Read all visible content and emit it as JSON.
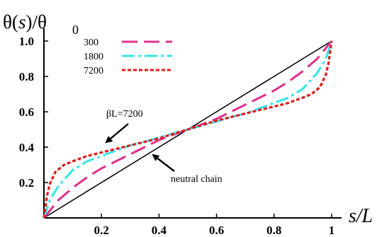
{
  "chart_data": {
    "type": "line",
    "title": "",
    "ylabel": "θ(s)/θ 0",
    "xlabel": "s/L",
    "xlim": [
      0,
      1
    ],
    "ylim": [
      0,
      1
    ],
    "x_ticks": [
      "0.2",
      "0.4",
      "0.6",
      "0.8",
      "1"
    ],
    "y_ticks": [
      "0.2",
      "0.4",
      "0.6",
      "0.8",
      "1.0"
    ],
    "legend": {
      "placement": "top-left",
      "entries": [
        {
          "label": "300",
          "color": "#e0308a",
          "dash": "long-dash"
        },
        {
          "label": "1800",
          "color": "#33e6ea",
          "dash": "dash-dot"
        },
        {
          "label": "7200",
          "color": "#e01a1a",
          "dash": "short-dash"
        }
      ]
    },
    "series": [
      {
        "name": "neutral chain",
        "color": "#000000",
        "x": [
          0,
          0.1,
          0.2,
          0.3,
          0.4,
          0.5,
          0.6,
          0.7,
          0.8,
          0.9,
          1.0
        ],
        "y": [
          0,
          0.1,
          0.2,
          0.3,
          0.4,
          0.5,
          0.6,
          0.7,
          0.8,
          0.9,
          1.0
        ]
      },
      {
        "name": "300",
        "color": "#e0308a",
        "x": [
          0,
          0.05,
          0.1,
          0.15,
          0.2,
          0.25,
          0.3,
          0.35,
          0.4,
          0.45,
          0.5,
          0.55,
          0.6,
          0.65,
          0.7,
          0.75,
          0.8,
          0.85,
          0.9,
          0.95,
          1.0
        ],
        "y": [
          0,
          0.1,
          0.17,
          0.23,
          0.28,
          0.32,
          0.36,
          0.4,
          0.44,
          0.47,
          0.5,
          0.53,
          0.56,
          0.6,
          0.64,
          0.68,
          0.72,
          0.77,
          0.83,
          0.9,
          1.0
        ]
      },
      {
        "name": "1800",
        "color": "#33e6ea",
        "x": [
          0,
          0.02,
          0.05,
          0.1,
          0.15,
          0.2,
          0.25,
          0.3,
          0.35,
          0.4,
          0.45,
          0.5,
          0.55,
          0.6,
          0.65,
          0.7,
          0.75,
          0.8,
          0.85,
          0.9,
          0.95,
          0.98,
          1.0
        ],
        "y": [
          0,
          0.1,
          0.18,
          0.27,
          0.32,
          0.35,
          0.38,
          0.41,
          0.43,
          0.455,
          0.478,
          0.5,
          0.522,
          0.545,
          0.57,
          0.59,
          0.62,
          0.65,
          0.68,
          0.73,
          0.82,
          0.9,
          1.0
        ]
      },
      {
        "name": "7200",
        "color": "#e01a1a",
        "x": [
          0,
          0.01,
          0.02,
          0.04,
          0.07,
          0.1,
          0.15,
          0.2,
          0.3,
          0.4,
          0.5,
          0.6,
          0.7,
          0.8,
          0.85,
          0.9,
          0.93,
          0.96,
          0.98,
          0.99,
          1.0
        ],
        "y": [
          0,
          0.12,
          0.19,
          0.26,
          0.3,
          0.32,
          0.35,
          0.37,
          0.41,
          0.45,
          0.5,
          0.55,
          0.59,
          0.63,
          0.65,
          0.68,
          0.7,
          0.74,
          0.81,
          0.88,
          1.0
        ]
      }
    ],
    "annotations": [
      {
        "text": "βL=7200",
        "target_series": "7200"
      },
      {
        "text": "neutral chain",
        "target_series": "neutral chain"
      }
    ]
  }
}
